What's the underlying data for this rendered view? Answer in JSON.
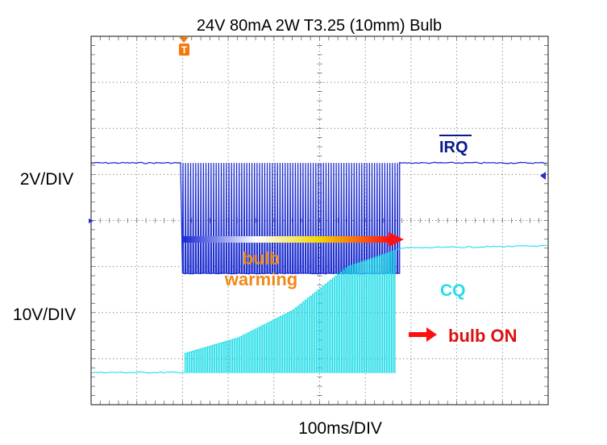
{
  "chart_data": {
    "type": "line",
    "title": "24V 80mA 2W T3.25 (10mm) Bulb",
    "xlabel": "100ms/DIV",
    "x_scale": "100ms/DIV",
    "grid": true,
    "x_divisions": 10,
    "y_divisions": 8,
    "trigger_marker": "T",
    "trigger_time_ms": 200,
    "series": [
      {
        "name": "IRQ",
        "color": "#1f2fd0",
        "label_color": "#0a1a8a",
        "scale": "2V/DIV",
        "high_div": 5.25,
        "low_div": 2.85,
        "x_ms": [
          0,
          200,
          200,
          675,
          675,
          1000
        ],
        "level": [
          "high",
          "high",
          "toggling",
          "toggling",
          "high",
          "high"
        ],
        "pulse_count": 85
      },
      {
        "name": "CQ",
        "color": "#22dde8",
        "label_color": "#22dde8",
        "scale": "10V/DIV",
        "low_div": 0.7,
        "x_ms": [
          0,
          200,
          200,
          320,
          440,
          560,
          665,
          675,
          1000
        ],
        "envelope_div": [
          0.7,
          0.7,
          1.1,
          1.45,
          2.05,
          3.0,
          3.35,
          3.4,
          3.45
        ],
        "pulse_count": 85
      }
    ],
    "annotations": {
      "warming": {
        "line1": "bulb",
        "line2": "warming",
        "color": "#ee8a1a"
      },
      "on": {
        "text": "bulb ON",
        "color": "#dd1111"
      }
    }
  }
}
